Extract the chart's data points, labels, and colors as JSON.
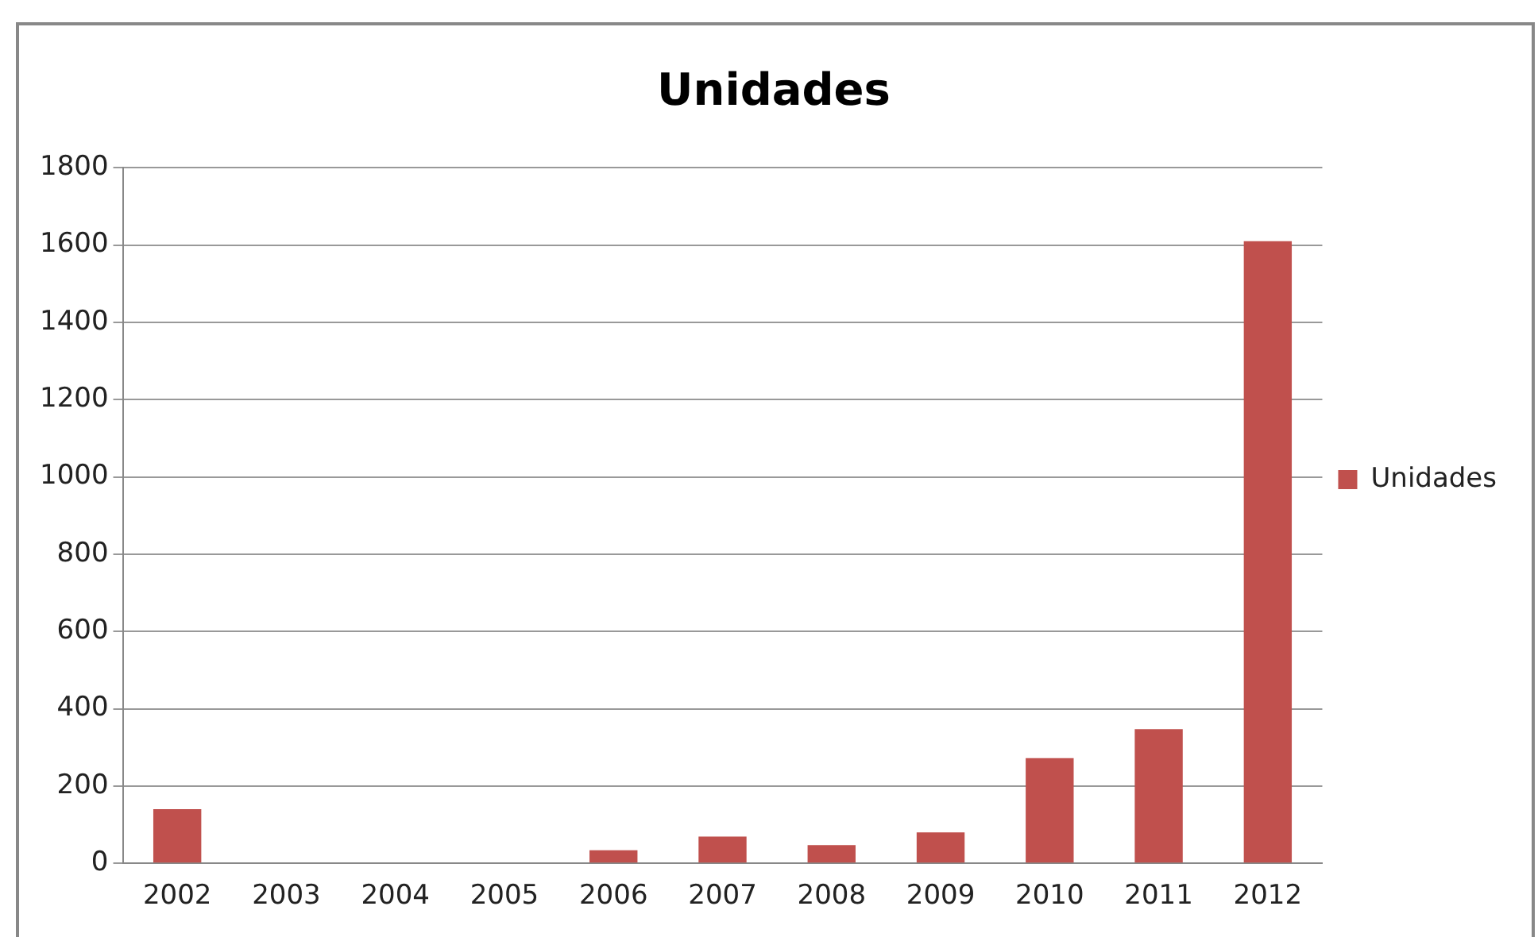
{
  "chart_data": {
    "type": "bar",
    "title": "Unidades",
    "categories": [
      "2002",
      "2003",
      "2004",
      "2005",
      "2006",
      "2007",
      "2008",
      "2009",
      "2010",
      "2011",
      "2012"
    ],
    "series": [
      {
        "name": "Unidades",
        "color": "#c0504d",
        "values": [
          140,
          0,
          0,
          0,
          34,
          69,
          47,
          80,
          272,
          347,
          1610
        ]
      }
    ],
    "ylim": [
      0,
      1800
    ],
    "yticks": [
      0,
      200,
      400,
      600,
      800,
      1000,
      1200,
      1400,
      1600,
      1800
    ],
    "grid": "y",
    "legend": "right"
  }
}
